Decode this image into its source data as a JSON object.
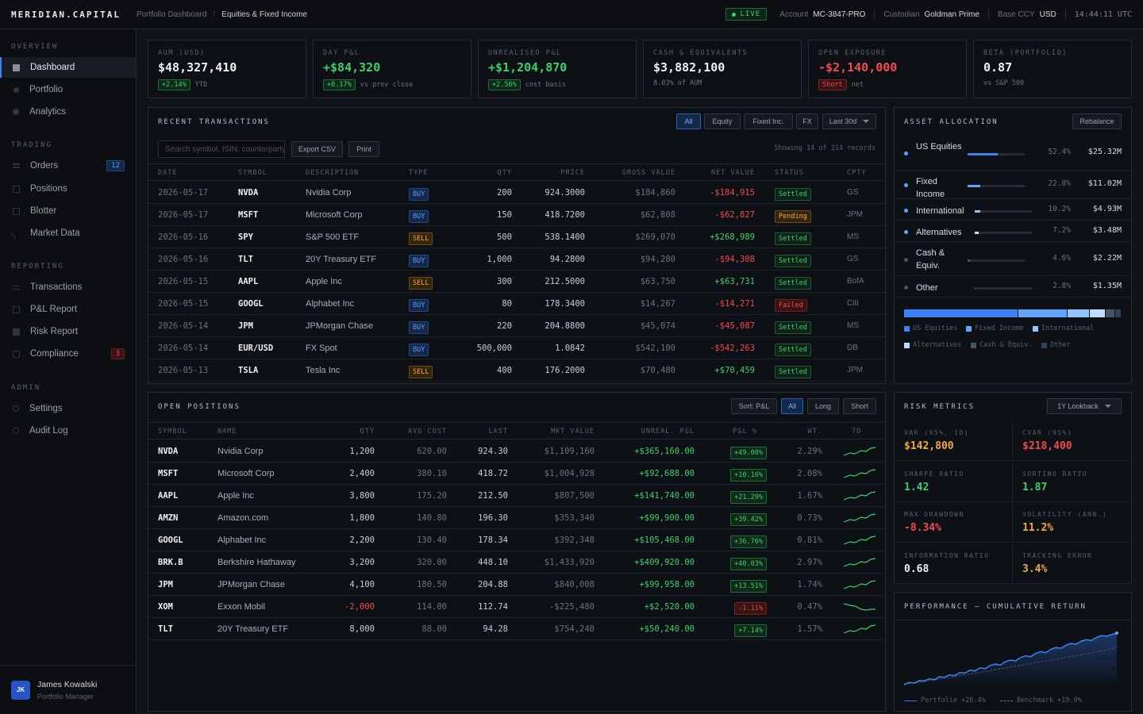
{
  "brand": "MERIDIAN.CAPITAL",
  "breadcrumb": {
    "parent": "Portfolio Dashboard",
    "sep": "/",
    "current": "Equities & Fixed Income"
  },
  "topbar": {
    "live": "LIVE",
    "account_label": "Account",
    "account": "MC-3847-PRO",
    "custodian_label": "Custodian",
    "custodian": "Goldman Prime",
    "ccy_label": "Base CCY",
    "ccy": "USD",
    "time": "14:44:11 UTC"
  },
  "sidebar": {
    "sections": {
      "overview": "OVERVIEW",
      "trading": "TRADING",
      "reporting": "REPORTING",
      "admin": "ADMIN"
    },
    "items": [
      {
        "label": "Dashboard",
        "icon": "dashboard-icon"
      },
      {
        "label": "Portfolio",
        "icon": "portfolio-icon"
      },
      {
        "label": "Analytics",
        "icon": "analytics-icon"
      },
      {
        "label": "Orders",
        "icon": "orders-icon",
        "badge": "12"
      },
      {
        "label": "Positions",
        "icon": "positions-icon"
      },
      {
        "label": "Blotter",
        "icon": "blotter-icon"
      },
      {
        "label": "Market Data",
        "icon": "market-data-icon"
      },
      {
        "label": "Transactions",
        "icon": "transactions-icon"
      },
      {
        "label": "P&L Report",
        "icon": "pnl-report-icon"
      },
      {
        "label": "Risk Report",
        "icon": "risk-report-icon"
      },
      {
        "label": "Compliance",
        "icon": "compliance-icon",
        "badge": "3"
      },
      {
        "label": "Settings",
        "icon": "settings-icon"
      },
      {
        "label": "Audit Log",
        "icon": "audit-log-icon"
      }
    ],
    "user": {
      "initials": "JK",
      "name": "James Kowalski",
      "role": "Portfolio Manager"
    }
  },
  "kpis": [
    {
      "label": "AUM (USD)",
      "value": "$48,327,410",
      "chip": "+2.14%",
      "sub": "YTD"
    },
    {
      "label": "DAY P&L",
      "value": "+$84,320",
      "chip": "+0.17%",
      "sub": "vs prev close"
    },
    {
      "label": "UNREALISED P&L",
      "value": "+$1,204,870",
      "chip": "+2.56%",
      "sub": "cost basis"
    },
    {
      "label": "CASH & EQUIVALENTS",
      "value": "$3,882,100",
      "chip": "",
      "sub": "8.03% of AUM"
    },
    {
      "label": "OPEN EXPOSURE",
      "value": "-$2,140,000",
      "chip": "Short",
      "sub": "net"
    },
    {
      "label": "BETA (PORTFOLIO)",
      "value": "0.87",
      "chip": "",
      "sub": "vs S&P 500"
    }
  ],
  "transactions": {
    "title": "RECENT TRANSACTIONS",
    "filters": [
      "All",
      "Equity",
      "Fixed Inc.",
      "FX"
    ],
    "range": "Last 30d",
    "search_placeholder": "Search symbol, ISIN, counterparty",
    "export": "Export CSV",
    "print": "Print",
    "showing": "Showing 14 of 214 records",
    "columns": [
      "DATE",
      "SYMBOL",
      "DESCRIPTION",
      "TYPE",
      "QTY",
      "PRICE",
      "GROSS VALUE",
      "NET VALUE",
      "STATUS",
      "CPTY"
    ],
    "rows": [
      [
        "2026-05-17",
        "NVDA",
        "Nvidia Corp",
        "BUY",
        "200",
        "924.3000",
        "$184,860",
        "-$184,915",
        "Settled",
        "GS"
      ],
      [
        "2026-05-17",
        "MSFT",
        "Microsoft Corp",
        "BUY",
        "150",
        "418.7200",
        "$62,808",
        "-$62,827",
        "Pending",
        "JPM"
      ],
      [
        "2026-05-16",
        "SPY",
        "S&P 500 ETF",
        "SELL",
        "500",
        "538.1400",
        "$269,070",
        "+$268,989",
        "Settled",
        "MS"
      ],
      [
        "2026-05-16",
        "TLT",
        "20Y Treasury ETF",
        "BUY",
        "1,000",
        "94.2800",
        "$94,280",
        "-$94,308",
        "Settled",
        "GS"
      ],
      [
        "2026-05-15",
        "AAPL",
        "Apple Inc",
        "SELL",
        "300",
        "212.5000",
        "$63,750",
        "+$63,731",
        "Settled",
        "BofA"
      ],
      [
        "2026-05-15",
        "GOOGL",
        "Alphabet Inc",
        "BUY",
        "80",
        "178.3400",
        "$14,267",
        "-$14,271",
        "Failed",
        "Citi"
      ],
      [
        "2026-05-14",
        "JPM",
        "JPMorgan Chase",
        "BUY",
        "220",
        "204.8800",
        "$45,074",
        "-$45,087",
        "Settled",
        "MS"
      ],
      [
        "2026-05-14",
        "EUR/USD",
        "FX Spot",
        "BUY",
        "500,000",
        "1.0842",
        "$542,100",
        "-$542,263",
        "Settled",
        "DB"
      ],
      [
        "2026-05-13",
        "TSLA",
        "Tesla Inc",
        "SELL",
        "400",
        "176.2000",
        "$70,480",
        "+$70,459",
        "Settled",
        "JPM"
      ]
    ]
  },
  "allocation": {
    "title": "ASSET ALLOCATION",
    "rebalance": "Rebalance",
    "rows": [
      {
        "name": "US Equities",
        "pct": "52.4%",
        "value": "$25.32M",
        "share": 52.4,
        "color": "#3b82f6"
      },
      {
        "name": "Fixed Income",
        "pct": "22.8%",
        "value": "$11.02M",
        "share": 22.8,
        "color": "#60a5fa"
      },
      {
        "name": "International",
        "pct": "10.2%",
        "value": "$4.93M",
        "share": 10.2,
        "color": "#93c5fd"
      },
      {
        "name": "Alternatives",
        "pct": "7.2%",
        "value": "$3.48M",
        "share": 7.2,
        "color": "#bfdbfe"
      },
      {
        "name": "Cash & Equiv.",
        "pct": "4.6%",
        "value": "$2.22M",
        "share": 4.6,
        "color": "#475569"
      },
      {
        "name": "Other",
        "pct": "2.8%",
        "value": "$1.35M",
        "share": 2.8,
        "color": "#334155"
      }
    ],
    "legend": [
      "US Equities",
      "Fixed Income",
      "International",
      "Alternatives",
      "Cash & Equiv.",
      "Other"
    ]
  },
  "positions": {
    "title": "OPEN POSITIONS",
    "sort": "Sort: P&L",
    "filters": [
      "All",
      "Long",
      "Short"
    ],
    "columns": [
      "SYMBOL",
      "NAME",
      "QTY",
      "AVG COST",
      "LAST",
      "MKT VALUE",
      "UNREAL. P&L",
      "P&L %",
      "WT.",
      "7D"
    ],
    "rows": [
      [
        "NVDA",
        "Nvidia Corp",
        "1,200",
        "620.00",
        "924.30",
        "$1,109,160",
        "+$365,160.00",
        "+49.08%",
        "2.29%",
        "up"
      ],
      [
        "MSFT",
        "Microsoft Corp",
        "2,400",
        "380.10",
        "418.72",
        "$1,004,928",
        "+$92,688.00",
        "+10.16%",
        "2.08%",
        "up"
      ],
      [
        "AAPL",
        "Apple Inc",
        "3,800",
        "175.20",
        "212.50",
        "$807,500",
        "+$141,740.00",
        "+21.29%",
        "1.67%",
        "up"
      ],
      [
        "AMZN",
        "Amazon.com",
        "1,800",
        "140.80",
        "196.30",
        "$353,340",
        "+$99,900.00",
        "+39.42%",
        "0.73%",
        "up"
      ],
      [
        "GOOGL",
        "Alphabet Inc",
        "2,200",
        "130.40",
        "178.34",
        "$392,348",
        "+$105,468.00",
        "+36.76%",
        "0.81%",
        "up"
      ],
      [
        "BRK.B",
        "Berkshire Hathaway",
        "3,200",
        "320.00",
        "448.10",
        "$1,433,920",
        "+$409,920.00",
        "+40.03%",
        "2.97%",
        "up"
      ],
      [
        "JPM",
        "JPMorgan Chase",
        "4,100",
        "180.50",
        "204.88",
        "$840,008",
        "+$99,958.00",
        "+13.51%",
        "1.74%",
        "up"
      ],
      [
        "XOM",
        "Exxon Mobil",
        "-2,000",
        "114.00",
        "112.74",
        "-$225,480",
        "+$2,520.00",
        "-1.11%",
        "0.47%",
        "down"
      ],
      [
        "TLT",
        "20Y Treasury ETF",
        "8,000",
        "88.00",
        "94.28",
        "$754,240",
        "+$50,240.00",
        "+7.14%",
        "1.57%",
        "up"
      ]
    ]
  },
  "risk": {
    "title": "RISK METRICS",
    "lookback": "1Y Lookback",
    "metrics": [
      {
        "label": "VAR (95%, 1D)",
        "value": "$142,800",
        "tone": "amber"
      },
      {
        "label": "CVAR (95%)",
        "value": "$218,400",
        "tone": "red"
      },
      {
        "label": "SHARPE RATIO",
        "value": "1.42",
        "tone": "green"
      },
      {
        "label": "SORTINO RATIO",
        "value": "1.87",
        "tone": "green"
      },
      {
        "label": "MAX DRAWDOWN",
        "value": "-8.34%",
        "tone": "red"
      },
      {
        "label": "VOLATILITY (ANN.)",
        "value": "11.2%",
        "tone": "amber"
      },
      {
        "label": "INFORMATION RATIO",
        "value": "0.68",
        "tone": "white"
      },
      {
        "label": "TRACKING ERROR",
        "value": "3.4%",
        "tone": "amber"
      }
    ]
  },
  "performance": {
    "title": "PERFORMANCE — CUMULATIVE RETURN",
    "legend_portfolio": "Portfolio +26.4%",
    "legend_benchmark": "Benchmark +19.0%"
  },
  "chart_data": {
    "type": "line",
    "title": "PERFORMANCE — CUMULATIVE RETURN",
    "xlabel": "",
    "ylabel": "",
    "series": [
      {
        "name": "Portfolio",
        "values": [
          0,
          1.2,
          0.8,
          2.1,
          1.9,
          3.0,
          2.6,
          4.1,
          3.8,
          5.0,
          4.6,
          6.2,
          5.9,
          7.4,
          7.0,
          8.6,
          8.2,
          9.8,
          10.5,
          10.1,
          11.8,
          12.6,
          12.2,
          13.9,
          14.8,
          14.3,
          16.0,
          16.9,
          16.4,
          18.1,
          19.0,
          18.6,
          20.2,
          21.1,
          20.7,
          22.3,
          23.0,
          22.6,
          24.2,
          25.1,
          24.8,
          25.6,
          26.4
        ]
      },
      {
        "name": "Benchmark",
        "values": [
          0,
          0.6,
          0.9,
          1.3,
          1.6,
          2.1,
          2.4,
          2.9,
          3.3,
          3.7,
          4.1,
          4.6,
          5.0,
          5.4,
          5.9,
          6.3,
          6.8,
          7.2,
          7.7,
          8.1,
          8.6,
          9.0,
          9.5,
          9.9,
          10.4,
          10.8,
          11.3,
          11.7,
          12.2,
          12.6,
          13.1,
          13.5,
          14.0,
          14.4,
          14.9,
          15.3,
          15.8,
          16.3,
          16.8,
          17.3,
          17.8,
          18.4,
          19.0
        ]
      }
    ],
    "ylim": [
      -2,
      28
    ]
  }
}
